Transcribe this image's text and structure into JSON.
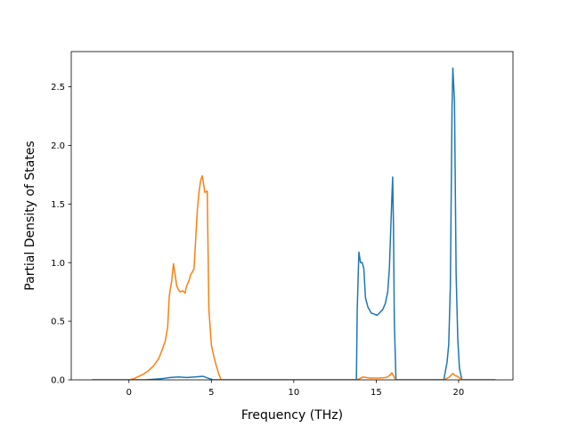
{
  "chart_data": {
    "type": "line",
    "title": "",
    "xlabel": "Frequency (THz)",
    "ylabel": "Partial Density of States",
    "xlim": [
      -3.5,
      23.3
    ],
    "ylim": [
      0,
      2.8
    ],
    "grid": false,
    "x_ticks": [
      0,
      5,
      10,
      15,
      20
    ],
    "x_tick_labels": [
      "0",
      "5",
      "10",
      "15",
      "20"
    ],
    "y_ticks": [
      0.0,
      0.5,
      1.0,
      1.5,
      2.0,
      2.5
    ],
    "y_tick_labels": [
      "0.0",
      "0.5",
      "1.0",
      "1.5",
      "2.0",
      "2.5"
    ],
    "series": [
      {
        "color": "#1f77b4",
        "points": [
          [
            -2.2,
            0.0
          ],
          [
            1.0,
            0.0
          ],
          [
            1.5,
            0.005
          ],
          [
            2.0,
            0.01
          ],
          [
            2.5,
            0.02
          ],
          [
            3.0,
            0.025
          ],
          [
            3.5,
            0.02
          ],
          [
            4.0,
            0.025
          ],
          [
            4.5,
            0.03
          ],
          [
            4.8,
            0.015
          ],
          [
            5.1,
            0.0
          ],
          [
            13.8,
            0.0
          ],
          [
            13.85,
            0.6
          ],
          [
            13.95,
            1.09
          ],
          [
            14.05,
            1.0
          ],
          [
            14.15,
            1.0
          ],
          [
            14.25,
            0.95
          ],
          [
            14.35,
            0.7
          ],
          [
            14.5,
            0.62
          ],
          [
            14.7,
            0.57
          ],
          [
            14.9,
            0.56
          ],
          [
            15.05,
            0.55
          ],
          [
            15.2,
            0.57
          ],
          [
            15.4,
            0.6
          ],
          [
            15.55,
            0.65
          ],
          [
            15.7,
            0.75
          ],
          [
            15.8,
            0.95
          ],
          [
            15.9,
            1.35
          ],
          [
            15.95,
            1.55
          ],
          [
            16.0,
            1.73
          ],
          [
            16.05,
            1.3
          ],
          [
            16.1,
            0.5
          ],
          [
            16.2,
            0.0
          ],
          [
            19.1,
            0.0
          ],
          [
            19.3,
            0.15
          ],
          [
            19.4,
            0.3
          ],
          [
            19.5,
            0.8
          ],
          [
            19.6,
            2.3
          ],
          [
            19.65,
            2.66
          ],
          [
            19.75,
            2.38
          ],
          [
            19.85,
            0.9
          ],
          [
            19.95,
            0.35
          ],
          [
            20.05,
            0.1
          ],
          [
            20.2,
            0.0
          ],
          [
            22.2,
            0.0
          ]
        ]
      },
      {
        "color": "#ff7f0e",
        "points": [
          [
            -2.2,
            0.0
          ],
          [
            0.0,
            0.0
          ],
          [
            0.3,
            0.01
          ],
          [
            0.6,
            0.03
          ],
          [
            0.9,
            0.05
          ],
          [
            1.2,
            0.08
          ],
          [
            1.5,
            0.12
          ],
          [
            1.8,
            0.18
          ],
          [
            2.0,
            0.25
          ],
          [
            2.2,
            0.33
          ],
          [
            2.35,
            0.45
          ],
          [
            2.45,
            0.72
          ],
          [
            2.6,
            0.85
          ],
          [
            2.7,
            0.99
          ],
          [
            2.8,
            0.9
          ],
          [
            2.9,
            0.8
          ],
          [
            3.0,
            0.77
          ],
          [
            3.1,
            0.75
          ],
          [
            3.25,
            0.76
          ],
          [
            3.4,
            0.74
          ],
          [
            3.5,
            0.8
          ],
          [
            3.65,
            0.85
          ],
          [
            3.75,
            0.9
          ],
          [
            3.85,
            0.92
          ],
          [
            3.95,
            0.95
          ],
          [
            4.05,
            1.2
          ],
          [
            4.15,
            1.45
          ],
          [
            4.25,
            1.6
          ],
          [
            4.35,
            1.7
          ],
          [
            4.45,
            1.74
          ],
          [
            4.55,
            1.65
          ],
          [
            4.6,
            1.6
          ],
          [
            4.75,
            1.61
          ],
          [
            4.85,
            0.6
          ],
          [
            5.0,
            0.3
          ],
          [
            5.15,
            0.2
          ],
          [
            5.3,
            0.12
          ],
          [
            5.45,
            0.05
          ],
          [
            5.6,
            0.0
          ],
          [
            13.8,
            0.0
          ],
          [
            14.0,
            0.01
          ],
          [
            14.2,
            0.025
          ],
          [
            14.6,
            0.015
          ],
          [
            15.2,
            0.015
          ],
          [
            15.6,
            0.02
          ],
          [
            15.8,
            0.035
          ],
          [
            15.95,
            0.06
          ],
          [
            16.1,
            0.02
          ],
          [
            16.2,
            0.0
          ],
          [
            19.1,
            0.0
          ],
          [
            19.4,
            0.02
          ],
          [
            19.55,
            0.04
          ],
          [
            19.65,
            0.055
          ],
          [
            19.8,
            0.035
          ],
          [
            19.95,
            0.03
          ],
          [
            20.1,
            0.01
          ],
          [
            20.3,
            0.0
          ],
          [
            22.2,
            0.0
          ]
        ]
      }
    ]
  }
}
